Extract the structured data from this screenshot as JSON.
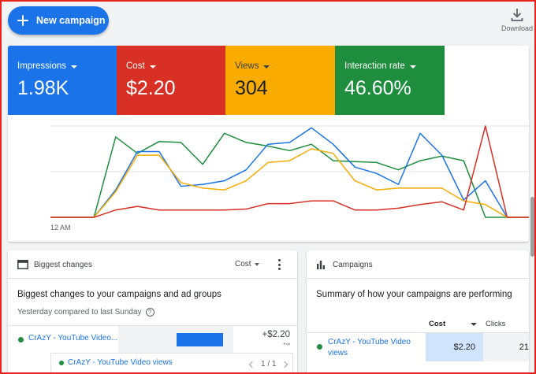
{
  "toolbar": {
    "new_campaign_label": "New campaign",
    "download_label": "Download"
  },
  "metrics": [
    {
      "label": "Impressions",
      "value": "1.98K",
      "color": "#1a73e8"
    },
    {
      "label": "Cost",
      "value": "$2.20",
      "color": "#d93025"
    },
    {
      "label": "Views",
      "value": "304",
      "color": "#f9ab00"
    },
    {
      "label": "Interaction rate",
      "value": "46.60%",
      "color": "#1e8e3e"
    }
  ],
  "chart_data": {
    "type": "line",
    "x_tick_labels": [
      "12 AM"
    ],
    "grid": true,
    "legend": "none",
    "ylim": [
      0,
      100
    ],
    "x": [
      0,
      1,
      2,
      3,
      4,
      5,
      6,
      7,
      8,
      9,
      10,
      11,
      12,
      13,
      14,
      15,
      16,
      17,
      18,
      19,
      20,
      21,
      22
    ],
    "series": [
      {
        "color": "#1e8e3e",
        "values": [
          0,
          0,
          0,
          88,
          70,
          83,
          82,
          58,
          92,
          82,
          78,
          73,
          80,
          62,
          61,
          60,
          52,
          62,
          67,
          62,
          0,
          0,
          0
        ]
      },
      {
        "color": "#1a73e8",
        "values": [
          0,
          0,
          0,
          30,
          72,
          72,
          34,
          36,
          40,
          52,
          80,
          82,
          98,
          80,
          55,
          48,
          36,
          92,
          68,
          19,
          40,
          0,
          0
        ]
      },
      {
        "color": "#f9ab00",
        "values": [
          0,
          0,
          0,
          28,
          68,
          68,
          38,
          32,
          30,
          40,
          60,
          62,
          75,
          70,
          40,
          30,
          32,
          32,
          32,
          18,
          14,
          0,
          0
        ]
      },
      {
        "color": "#d93025",
        "values": [
          0,
          0,
          0,
          8,
          12,
          8,
          8,
          8,
          8,
          9,
          15,
          15,
          18,
          18,
          8,
          8,
          10,
          14,
          17,
          8,
          100,
          0,
          0
        ]
      }
    ]
  },
  "biggest_changes": {
    "title": "Biggest changes",
    "metric_select": "Cost",
    "subtitle": "Biggest changes to your campaigns and ad groups",
    "note": "Yesterday compared to last Sunday",
    "help_symbol": "?",
    "rows": [
      {
        "name": "CrAzY - YouTube Video...",
        "change": "+$2.20",
        "change_sub": "+∞",
        "bar_fraction": 0.82
      }
    ],
    "sub_row": {
      "name": "CrAzY - YouTube Video views",
      "pager": "1 / 1"
    }
  },
  "campaigns": {
    "title": "Campaigns",
    "subtitle": "Summary of how your campaigns are performing",
    "columns": [
      "Cost",
      "Clicks"
    ],
    "rows": [
      {
        "name": "CrAzY - YouTube Video views",
        "cost": "$2.20",
        "clicks": "21"
      }
    ]
  }
}
